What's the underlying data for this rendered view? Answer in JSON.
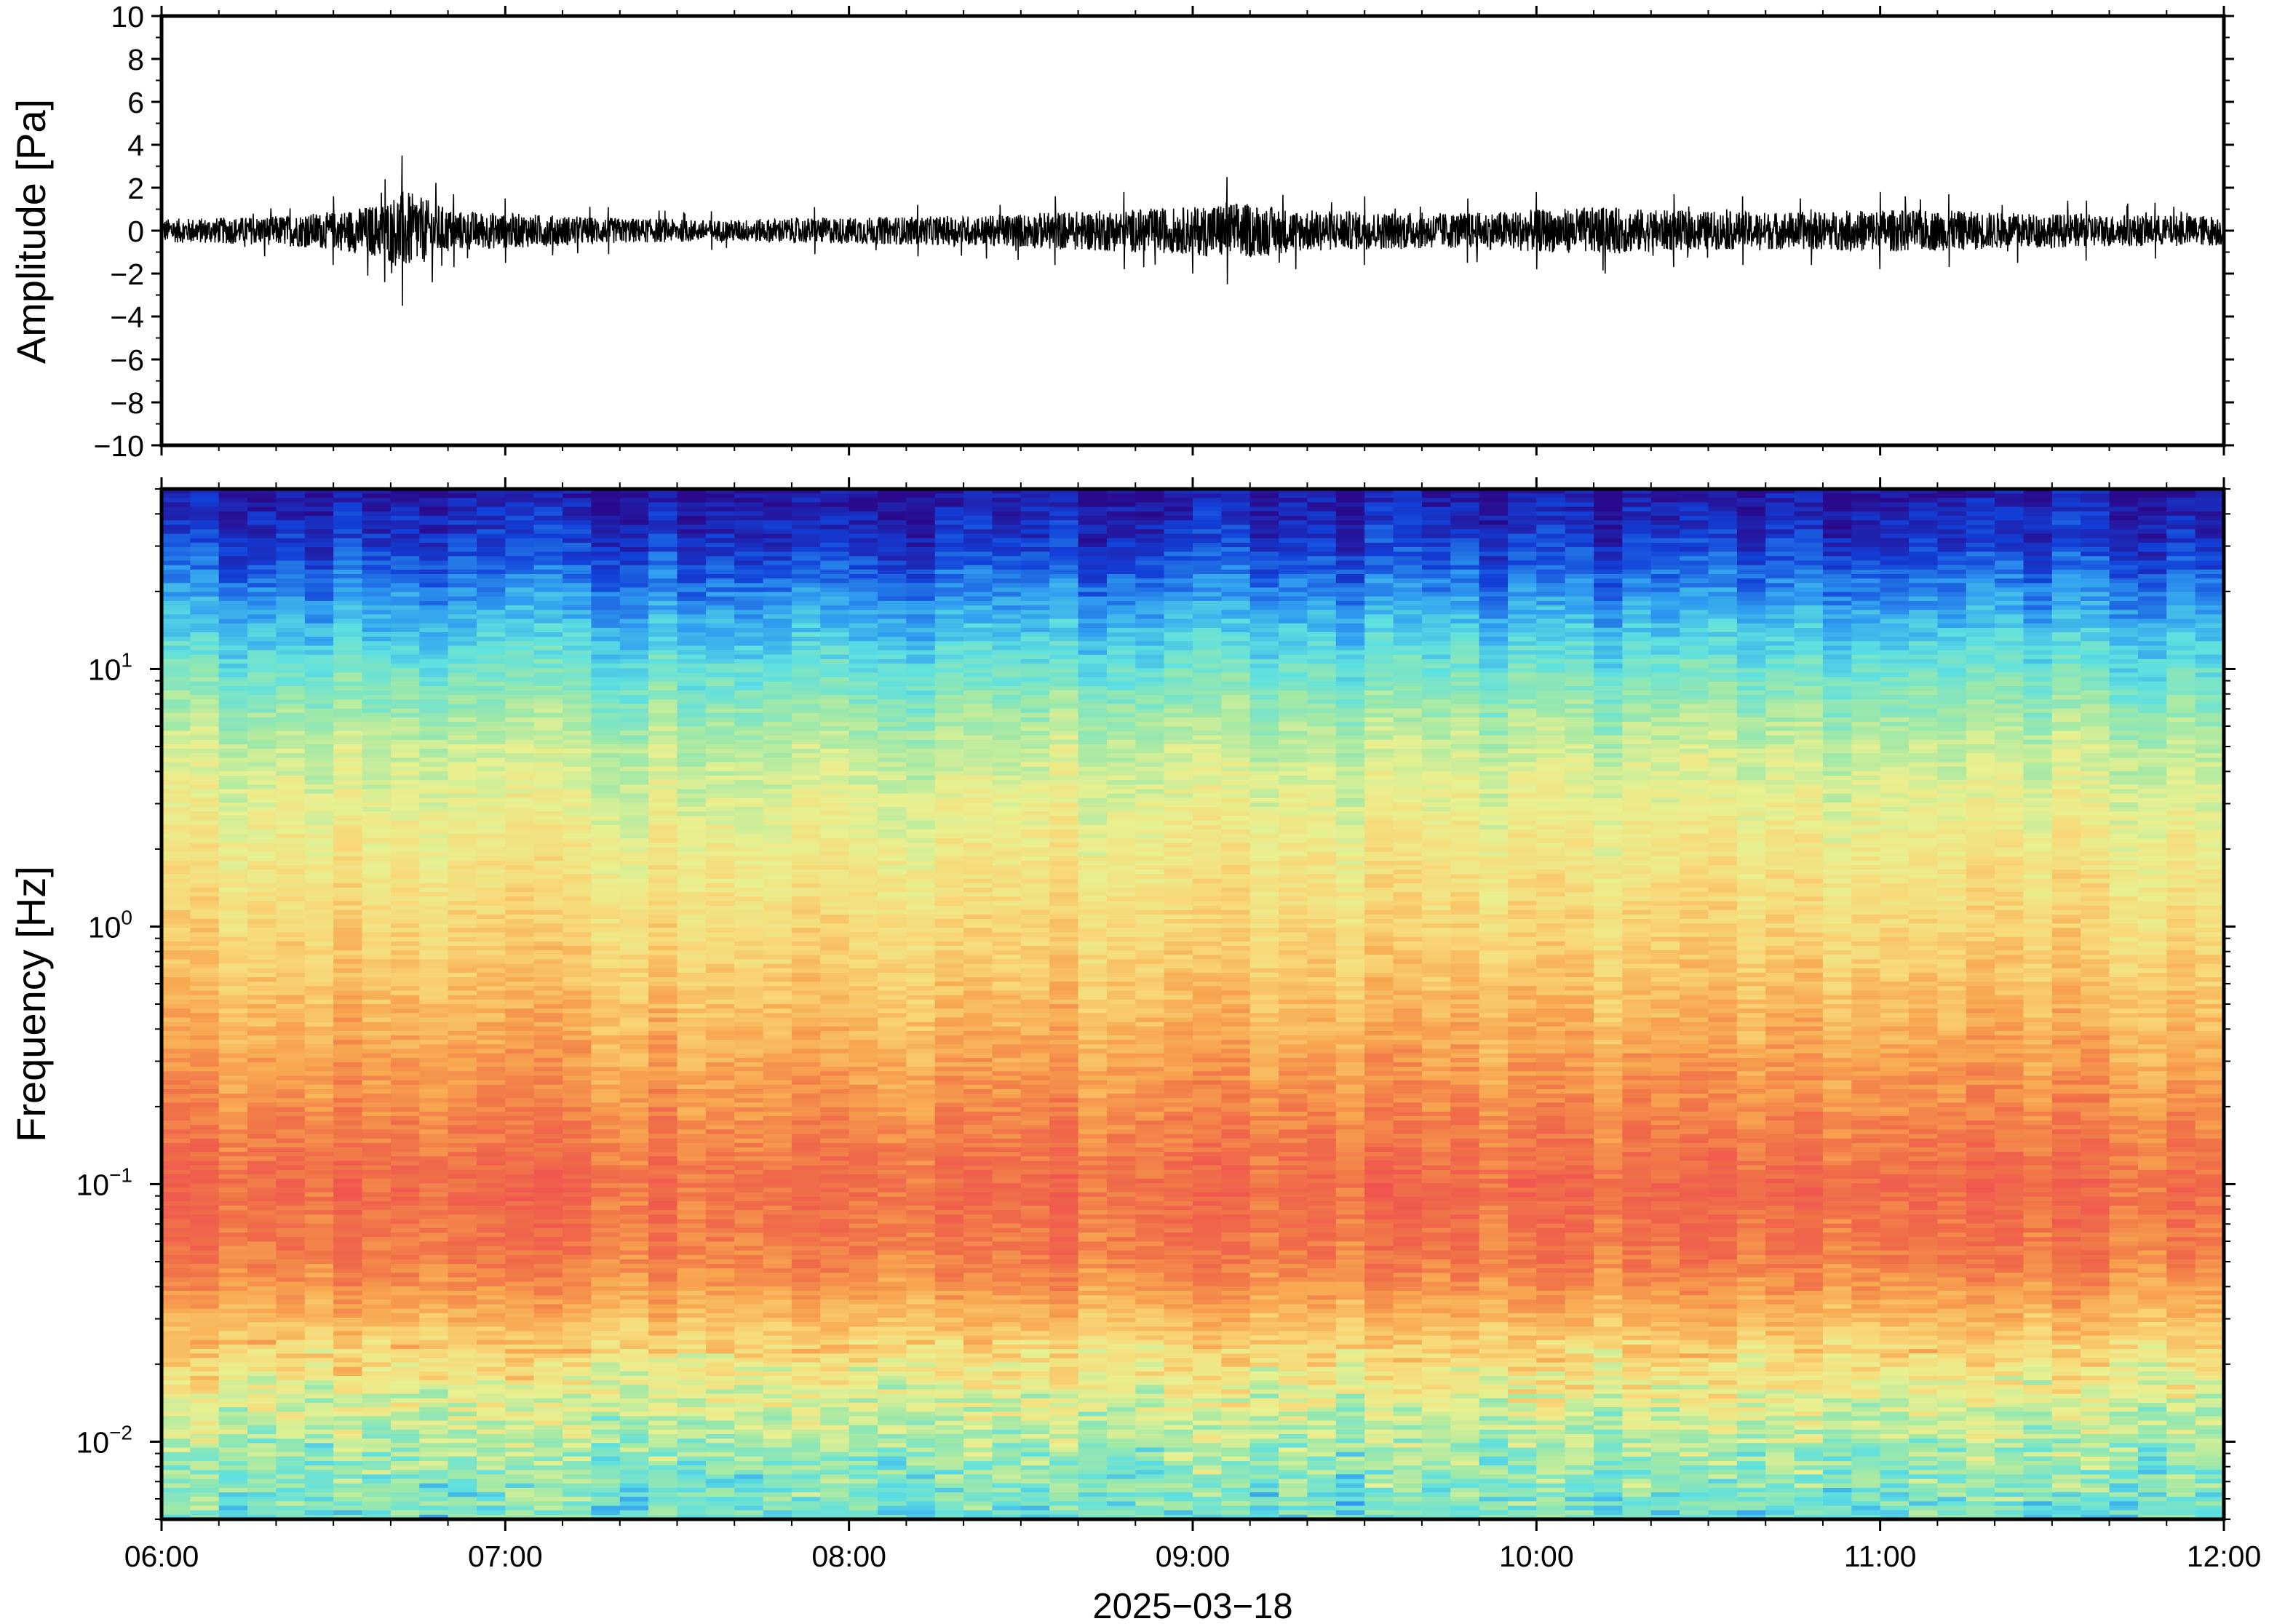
{
  "chart_data": [
    {
      "type": "line",
      "panel": "waveform",
      "title": "",
      "ylabel": "Amplitude [Pa]",
      "ylim": [
        -10,
        10
      ],
      "yticks": [
        10,
        8,
        6,
        4,
        2,
        0,
        -2,
        -4,
        -6,
        -8,
        -10
      ],
      "ytick_labels": [
        "10",
        "8",
        "6",
        "4",
        "2",
        "0",
        "−2",
        "−4",
        "−6",
        "−8",
        "−10"
      ],
      "xlim": [
        "06:00",
        "12:00"
      ],
      "series": [
        {
          "color": "#000000",
          "description_of_envelope": "time_hours, peak_amplitude_Pa",
          "envelope": [
            [
              0.0,
              1.0
            ],
            [
              0.3,
              1.2
            ],
            [
              0.5,
              1.6
            ],
            [
              0.6,
              2.1
            ],
            [
              0.65,
              2.4
            ],
            [
              0.7,
              3.5
            ],
            [
              0.85,
              1.7
            ],
            [
              1.0,
              1.5
            ],
            [
              1.3,
              1.1
            ],
            [
              1.6,
              0.9
            ],
            [
              1.9,
              1.1
            ],
            [
              2.2,
              1.2
            ],
            [
              2.4,
              1.3
            ],
            [
              2.6,
              1.6
            ],
            [
              2.8,
              1.8
            ],
            [
              3.0,
              2.0
            ],
            [
              3.1,
              2.5
            ],
            [
              3.3,
              1.8
            ],
            [
              3.5,
              1.6
            ],
            [
              3.8,
              1.5
            ],
            [
              4.0,
              1.8
            ],
            [
              4.2,
              2.0
            ],
            [
              4.4,
              1.7
            ],
            [
              4.6,
              1.6
            ],
            [
              4.8,
              1.6
            ],
            [
              5.0,
              1.8
            ],
            [
              5.2,
              1.7
            ],
            [
              5.4,
              1.5
            ],
            [
              5.6,
              1.4
            ],
            [
              5.8,
              1.3
            ],
            [
              6.0,
              1.3
            ]
          ]
        }
      ]
    },
    {
      "type": "heatmap",
      "panel": "spectrogram",
      "title": "",
      "ylabel": "Frequency [Hz]",
      "yscale": "log",
      "ylim": [
        0.005,
        50
      ],
      "yticks": [
        0.01,
        0.1,
        1,
        10
      ],
      "ytick_labels": [
        {
          "base": "10",
          "exp": "−2"
        },
        {
          "base": "10",
          "exp": "−1"
        },
        {
          "base": "10",
          "exp": "0"
        },
        {
          "base": "10",
          "exp": "1"
        }
      ],
      "xlabel": "2025−03−18",
      "xlim": [
        "06:00",
        "12:00"
      ],
      "xticks": [
        "06:00",
        "07:00",
        "08:00",
        "09:00",
        "10:00",
        "11:00",
        "12:00"
      ],
      "colormap": [
        "#2a0a8c",
        "#1240d8",
        "#2f9cf0",
        "#5ee0e0",
        "#9ee8a8",
        "#e8f090",
        "#f8d878",
        "#f8a850",
        "#f07048",
        "#f05050"
      ],
      "level_profile_by_frequency": [
        {
          "freq_hz": 50,
          "level": 0.02
        },
        {
          "freq_hz": 30,
          "level": 0.1
        },
        {
          "freq_hz": 20,
          "level": 0.2
        },
        {
          "freq_hz": 10,
          "level": 0.36
        },
        {
          "freq_hz": 5,
          "level": 0.5
        },
        {
          "freq_hz": 2,
          "level": 0.6
        },
        {
          "freq_hz": 1,
          "level": 0.66
        },
        {
          "freq_hz": 0.5,
          "level": 0.73
        },
        {
          "freq_hz": 0.2,
          "level": 0.83
        },
        {
          "freq_hz": 0.1,
          "level": 0.91
        },
        {
          "freq_hz": 0.05,
          "level": 0.86
        },
        {
          "freq_hz": 0.03,
          "level": 0.74
        },
        {
          "freq_hz": 0.02,
          "level": 0.62
        },
        {
          "freq_hz": 0.01,
          "level": 0.46
        },
        {
          "freq_hz": 0.005,
          "level": 0.36
        }
      ]
    }
  ]
}
